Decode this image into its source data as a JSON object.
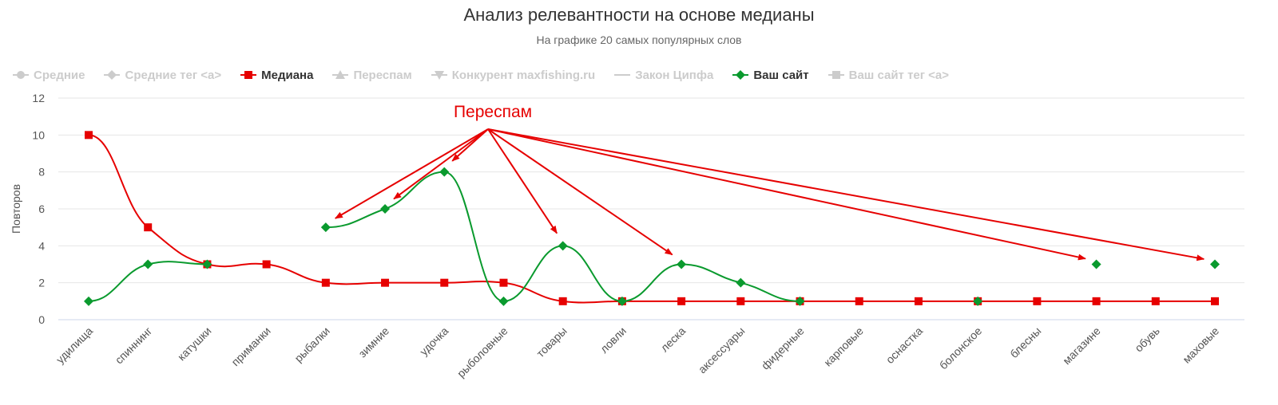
{
  "header": {
    "title": "Анализ релевантности на основе медианы",
    "subtitle": "На графике 20 самых популярных слов"
  },
  "legend": [
    {
      "label": "Средние",
      "color": "#cccccc",
      "symbol": "circle",
      "visible": false
    },
    {
      "label": "Средние тег <a>",
      "color": "#cccccc",
      "symbol": "diamond",
      "visible": false
    },
    {
      "label": "Медиана",
      "color": "#e60000",
      "symbol": "square",
      "visible": true
    },
    {
      "label": "Переспам",
      "color": "#cccccc",
      "symbol": "triangle",
      "visible": false
    },
    {
      "label": "Конкурент maxfishing.ru",
      "color": "#cccccc",
      "symbol": "triangle-down",
      "visible": false
    },
    {
      "label": "Закон Ципфа",
      "color": "#cccccc",
      "symbol": "line",
      "visible": false
    },
    {
      "label": "Ваш сайт",
      "color": "#0a9a2e",
      "symbol": "diamond",
      "visible": true
    },
    {
      "label": "Ваш сайт тег <a>",
      "color": "#cccccc",
      "symbol": "square",
      "visible": false
    }
  ],
  "annotation": {
    "text": "Переспам",
    "color": "#e60000"
  },
  "chart_data": {
    "type": "line",
    "categories": [
      "удилища",
      "спиннинг",
      "катушки",
      "приманки",
      "рыбалки",
      "зимние",
      "удочка",
      "рыболовные",
      "товары",
      "ловли",
      "леска",
      "аксессуары",
      "фидерные",
      "карповые",
      "оснастка",
      "болонское",
      "блесны",
      "магазине",
      "обувь",
      "маховые"
    ],
    "ylabel": "Повторов",
    "xlabel": "",
    "ylim": [
      0,
      12
    ],
    "yticks": [
      0,
      2,
      4,
      6,
      8,
      10,
      12
    ],
    "grid": true,
    "legend_position": "top",
    "series": [
      {
        "name": "Медиана",
        "color": "#e60000",
        "marker": "square",
        "values": [
          10,
          5,
          3,
          3,
          2,
          2,
          2,
          2,
          1,
          1,
          1,
          1,
          1,
          1,
          1,
          1,
          1,
          1,
          1,
          1
        ]
      },
      {
        "name": "Ваш сайт",
        "color": "#0a9a2e",
        "marker": "diamond",
        "values": [
          1,
          3,
          3,
          null,
          5,
          6,
          8,
          1,
          4,
          1,
          3,
          2,
          1,
          null,
          null,
          1,
          null,
          3,
          null,
          3
        ]
      }
    ],
    "arrows_to_categories": [
      "рыбалки",
      "зимние",
      "удочка",
      "товары",
      "леска",
      "магазине",
      "маховые"
    ]
  }
}
